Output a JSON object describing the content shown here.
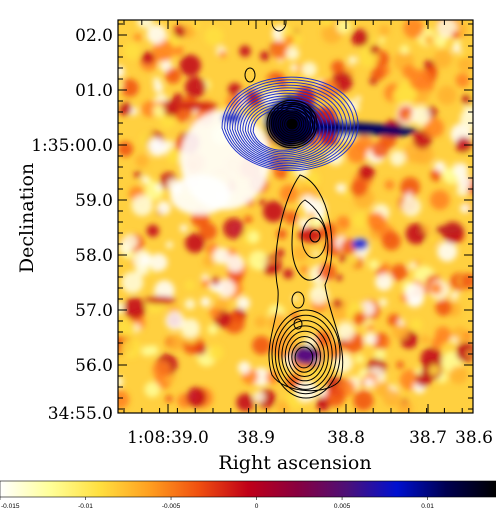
{
  "chart_data": {
    "type": "heatmap",
    "xlabel": "Right ascension",
    "ylabel": "Declination",
    "x_ticks": [
      "1:08:39.0",
      "38.9",
      "38.8",
      "38.7",
      "38.6"
    ],
    "y_ticks": [
      "02.0",
      "01.0",
      "1:35:00.0",
      "59.0",
      "58.0",
      "57.0",
      "56.0",
      "34:55.0"
    ],
    "colorbar": {
      "ticks": [
        "-0.015",
        "-0.01",
        "-0.005",
        "0",
        "0.005",
        "0.01"
      ],
      "tick_values": [
        -0.015,
        -0.01,
        -0.005,
        0,
        0.005,
        0.01
      ],
      "range": [
        -0.015,
        0.014
      ],
      "colormap": [
        "#ffffff",
        "#ffff9a",
        "#ffe040",
        "#ffa020",
        "#f05010",
        "#c00018",
        "#880040",
        "#4c1078",
        "#0010d0",
        "#000050",
        "#000000"
      ]
    },
    "contours": [
      {
        "name": "",
        "color": "#2233cc",
        "center": [
          38.82,
          60.4
        ],
        "levels": 13
      },
      {
        "name": "",
        "color": "#000000",
        "center": [
          38.82,
          60.4
        ],
        "levels": 10
      },
      {
        "name": "",
        "color": "#000000",
        "center": [
          38.8,
          56.1
        ],
        "levels": 8
      }
    ]
  }
}
